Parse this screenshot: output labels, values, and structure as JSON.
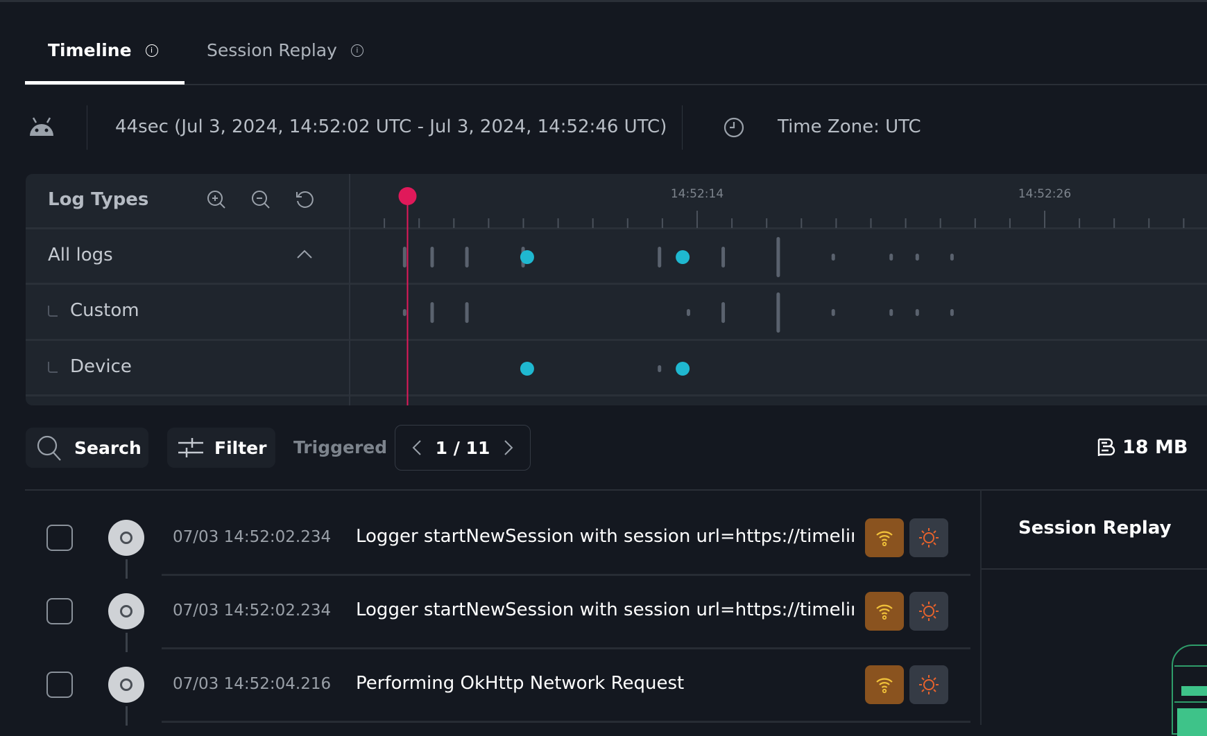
{
  "tabs": [
    {
      "label": "Timeline",
      "active": true
    },
    {
      "label": "Session Replay",
      "active": false
    }
  ],
  "info_row": {
    "os_icon": "android-icon",
    "range": "44sec (Jul 3, 2024, 14:52:02 UTC - Jul 3, 2024, 14:52:46 UTC)",
    "timezone": "Time Zone: UTC"
  },
  "timeline": {
    "header": "Log Types",
    "axis_labels": [
      {
        "time": "14:52:14",
        "label": "14:52:14"
      },
      {
        "time": "14:52:26",
        "label": "14:52:26"
      }
    ],
    "playhead_time": "14:52:04.0",
    "colors": {
      "playhead": "#e0195a",
      "log": "#5a626e",
      "device": "#1fb8d0"
    },
    "rows": [
      {
        "label": "All logs",
        "expanded": true,
        "events": [
          [
            "14:52:03.9",
            "m"
          ],
          [
            "14:52:04.85",
            "m"
          ],
          [
            "14:52:06.05",
            "m"
          ],
          [
            "14:52:07.99",
            "m"
          ],
          [
            "14:52:08.13",
            "dot"
          ],
          [
            "14:52:12.7",
            "m"
          ],
          [
            "14:52:13.5",
            "dot"
          ],
          [
            "14:52:14.9",
            "m"
          ],
          [
            "14:52:16.8",
            "l"
          ],
          [
            "14:52:18.7",
            "s"
          ],
          [
            "14:52:20.7",
            "s"
          ],
          [
            "14:52:21.6",
            "s"
          ],
          [
            "14:52:22.8",
            "s"
          ]
        ]
      },
      {
        "label": "Custom",
        "events": [
          [
            "14:52:03.9",
            "s"
          ],
          [
            "14:52:04.85",
            "m"
          ],
          [
            "14:52:06.05",
            "m"
          ],
          [
            "14:52:13.7",
            "s"
          ],
          [
            "14:52:14.9",
            "m"
          ],
          [
            "14:52:16.8",
            "l"
          ],
          [
            "14:52:18.7",
            "s"
          ],
          [
            "14:52:20.7",
            "s"
          ],
          [
            "14:52:21.6",
            "s"
          ],
          [
            "14:52:22.8",
            "s"
          ]
        ]
      },
      {
        "label": "Device",
        "events": [
          [
            "14:52:08.13",
            "dot"
          ],
          [
            "14:52:12.7",
            "s"
          ],
          [
            "14:52:13.5",
            "dot"
          ]
        ]
      }
    ]
  },
  "toolbar": {
    "search": "Search",
    "filter": "Filter",
    "triggered": "Triggered",
    "page": "1 / 11",
    "size": "18 MB"
  },
  "logs": [
    {
      "time": "07/03 14:52:02.234",
      "message": "Logger startNewSession with session url=https://timeline"
    },
    {
      "time": "07/03 14:52:02.234",
      "message": "Logger startNewSession with session url=https://timeline"
    },
    {
      "time": "07/03 14:52:04.216",
      "message": "Performing OkHttp Network Request"
    }
  ],
  "badge_colors": {
    "network": "#8a531f",
    "wifi": "#f2c33a",
    "sun": "#e8632c"
  },
  "side_panel": {
    "title": "Session Replay"
  }
}
